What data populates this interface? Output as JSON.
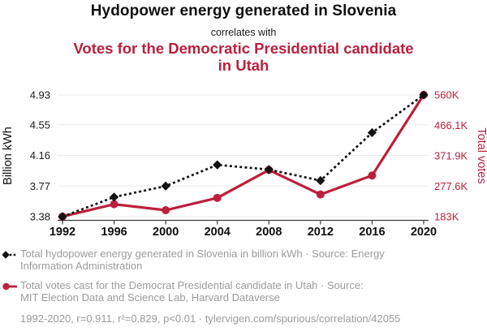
{
  "header": {
    "title": "Hydopower energy generated in Slovenia",
    "connector": "correlates with",
    "correlation_title": "Votes for the Democratic Presidential candidate in Utah"
  },
  "colors": {
    "accent_red": "#bc1f3c",
    "series_black": "#121212",
    "legend_gray": "#9b9b9b",
    "gridline": "#ebebeb",
    "axis_line": "#3d3d3d",
    "tick_label_black": "#1a1a1a"
  },
  "chart_data": {
    "type": "line",
    "x": [
      1992,
      1996,
      2000,
      2004,
      2008,
      2012,
      2016,
      2020
    ],
    "x_tick_labels": [
      "1992",
      "1996",
      "2000",
      "2004",
      "2008",
      "2012",
      "2016",
      "2020"
    ],
    "series": [
      {
        "name": "Total hydopower energy generated in Slovenia",
        "axis": "left",
        "unit": "billion kWh",
        "line_style": "dotted",
        "marker": "diamond",
        "values": [
          3.38,
          3.63,
          3.77,
          4.04,
          3.98,
          3.84,
          4.45,
          4.93
        ]
      },
      {
        "name": "Total votes cast for the Democrat Presidential candidate in Utah",
        "axis": "right",
        "unit": "thousand votes",
        "line_style": "solid",
        "marker": "circle",
        "values": [
          183.4,
          221.6,
          203.1,
          241.2,
          327.7,
          251.8,
          310.7,
          560.3
        ]
      }
    ],
    "left_axis": {
      "label": "Billion kWh",
      "range": [
        3.38,
        4.93
      ],
      "ticks": [
        3.38,
        3.77,
        4.16,
        4.55,
        4.93
      ],
      "tick_labels": [
        "3.38",
        "3.77",
        "4.16",
        "4.55",
        "4.93"
      ]
    },
    "right_axis": {
      "label": "Total votes",
      "range": [
        183,
        560
      ],
      "ticks": [
        183,
        277.6,
        371.9,
        466.1,
        560
      ],
      "tick_labels": [
        "183K",
        "277.6K",
        "371.9K",
        "466.1K",
        "560K"
      ]
    },
    "grid": "horizontal",
    "legend_position": "bottom"
  },
  "legend": {
    "items": [
      {
        "lines": [
          "Total hydopower energy generated in Slovenia in billion kWh · Source: Energy",
          "Information Administration"
        ]
      },
      {
        "lines": [
          "Total votes cast for the Democrat Presidential candidate in Utah · Source:",
          "MIT Election Data and Science Lab, Harvard Dataverse"
        ]
      }
    ],
    "footer": "1992-2020, r=0.911, r²=0.829, p<0.01 · tylervigen.com/spurious/correlation/42055"
  }
}
